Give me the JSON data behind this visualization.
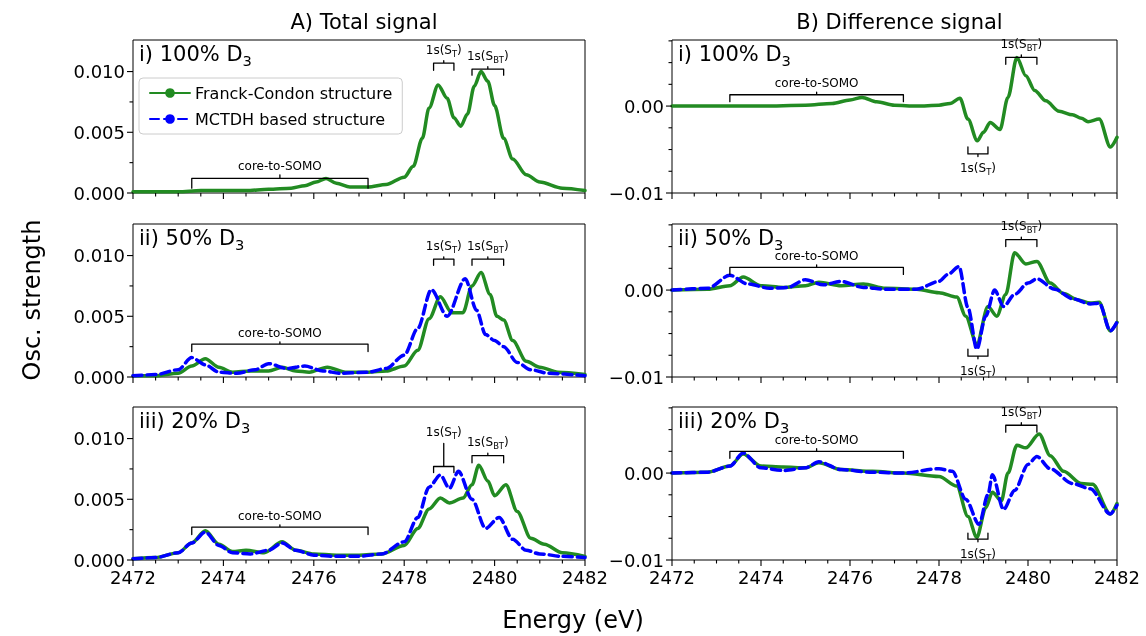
{
  "chart_data": [
    {
      "type": "line",
      "title": "A) Total signal",
      "annotations": [
        "i) 100% D$_{3}$",
        "core-to-SOMO",
        "1s(S$_{T}$)",
        "1s(S$_{BT}$)"
      ],
      "legend": "top left",
      "tick_labels": "y",
      "xlim": [
        2472,
        2482
      ],
      "xticks": [
        2472,
        {
          "value": 2472.5,
          "label": null
        },
        {
          "value": 2473,
          "label": null
        },
        {
          "value": 2473.5,
          "label": null
        },
        2474,
        {
          "value": 2474.5,
          "label": null
        },
        {
          "value": 2475,
          "label": null
        },
        {
          "value": 2475.5,
          "label": null
        },
        2476,
        {
          "value": 2476.5,
          "label": null
        },
        {
          "value": 2477,
          "label": null
        },
        {
          "value": 2477.5,
          "label": null
        },
        2478,
        {
          "value": 2478.5,
          "label": null
        },
        {
          "value": 2479,
          "label": null
        },
        {
          "value": 2479.5,
          "label": null
        },
        2480,
        {
          "value": 2480.5,
          "label": null
        },
        {
          "value": 2481,
          "label": null
        },
        {
          "value": 2481.5,
          "label": null
        },
        2482
      ],
      "ylim": [
        0,
        0.0126
      ],
      "yticks": [
        {
          "value": 0,
          "label": "0.000"
        },
        {
          "value": 0.0025,
          "label": null
        },
        {
          "value": 0.005,
          "label": "0.005"
        },
        {
          "value": 0.0075,
          "label": null
        },
        {
          "value": 0.01,
          "label": "0.010"
        }
      ],
      "series": [
        {
          "name": "Franck-Condon structure",
          "color": "#228b22",
          "line_style": "solid",
          "x": [
            2472,
            2473,
            2473.5,
            2474,
            2474.5,
            2475,
            2475.5,
            2475.8,
            2476.05,
            2476.27,
            2476.5,
            2476.8,
            2477.2,
            2477.6,
            2478,
            2478.2,
            2478.4,
            2478.55,
            2478.75,
            2478.95,
            2479.1,
            2479.25,
            2479.4,
            2479.55,
            2479.7,
            2479.85,
            2480,
            2480.2,
            2480.4,
            2480.7,
            2481,
            2481.5,
            2482
          ],
          "values": [
            0.0001,
            0.0001,
            0.0002,
            0.0002,
            0.0002,
            0.0003,
            0.0004,
            0.0006,
            0.0009,
            0.0012,
            0.0008,
            0.0005,
            0.0005,
            0.0007,
            0.0013,
            0.0022,
            0.0045,
            0.007,
            0.0089,
            0.0078,
            0.0062,
            0.0055,
            0.0065,
            0.0088,
            0.01,
            0.0092,
            0.0072,
            0.0045,
            0.0028,
            0.0015,
            0.0009,
            0.0004,
            0.0002
          ]
        },
        {
          "name": "MCTDH based structure",
          "color": "#0000ff",
          "line_style": "dashed"
        },
        {
          "type": "line",
          "color": "#000000",
          "line_style": "solid",
          "x": [
            2473.3,
            2473.3,
            2475.25,
            2475.25,
            2475.25,
            2477.2,
            2477.2
          ],
          "values": [
            0.0004,
            0.0012,
            0.0012,
            0.0015,
            0.0012,
            0.0012,
            0.0004
          ]
        },
        {
          "type": "line",
          "color": "#000000",
          "line_style": "solid",
          "x": [
            2478.65,
            2478.65,
            2478.875,
            2478.875,
            2478.875,
            2479.1,
            2479.1
          ],
          "values": [
            0.0101,
            0.0107,
            0.0107,
            0.0109,
            0.0107,
            0.0107,
            0.0101
          ]
        },
        {
          "type": "line",
          "color": "#000000",
          "line_style": "solid",
          "x": [
            2479.5,
            2479.5,
            2479.85,
            2479.85,
            2479.85,
            2480.2,
            2480.2
          ],
          "values": [
            0.0097,
            0.0102,
            0.0102,
            0.0104,
            0.0102,
            0.0102,
            0.0097
          ]
        }
      ]
    },
    {
      "type": "line",
      "title": "B) Difference signal",
      "annotations": [
        "i) 100% D$_{3}$",
        "core-to-SOMO",
        "1s(S$_{T}$)",
        "1s(S$_{BT}$)"
      ],
      "tick_labels": "y",
      "xlim": [
        2472,
        2482
      ],
      "xticks": [
        2472,
        {
          "value": 2472.5,
          "label": null
        },
        {
          "value": 2473,
          "label": null
        },
        {
          "value": 2473.5,
          "label": null
        },
        2474,
        {
          "value": 2474.5,
          "label": null
        },
        {
          "value": 2475,
          "label": null
        },
        {
          "value": 2475.5,
          "label": null
        },
        2476,
        {
          "value": 2476.5,
          "label": null
        },
        {
          "value": 2477,
          "label": null
        },
        {
          "value": 2477.5,
          "label": null
        },
        2478,
        {
          "value": 2478.5,
          "label": null
        },
        {
          "value": 2479,
          "label": null
        },
        {
          "value": 2479.5,
          "label": null
        },
        2480,
        {
          "value": 2480.5,
          "label": null
        },
        {
          "value": 2481,
          "label": null
        },
        {
          "value": 2481.5,
          "label": null
        },
        2482
      ],
      "ylim": [
        -0.01,
        0.0076
      ],
      "yticks": [
        {
          "value": -0.01,
          "label": "−0.01"
        },
        {
          "value": -0.0075,
          "label": null
        },
        {
          "value": -0.005,
          "label": null
        },
        {
          "value": -0.0025,
          "label": null
        },
        {
          "value": 0,
          "label": "0.00"
        },
        {
          "value": 0.0025,
          "label": null
        },
        {
          "value": 0.005,
          "label": null
        },
        {
          "value": 0.0075,
          "label": null
        }
      ],
      "series": [
        {
          "color": "#228b22",
          "line_style": "solid",
          "x": [
            2472,
            2473,
            2474,
            2475,
            2475.6,
            2476,
            2476.27,
            2476.6,
            2477,
            2477.5,
            2478,
            2478.25,
            2478.47,
            2478.65,
            2478.86,
            2479,
            2479.15,
            2479.37,
            2479.55,
            2479.75,
            2479.95,
            2480.15,
            2480.4,
            2480.7,
            2481,
            2481.2,
            2481.35,
            2481.6,
            2481.85,
            2482
          ],
          "values": [
            0,
            0,
            0,
            0.0001,
            0.0003,
            0.0007,
            0.001,
            0.0005,
            0.0001,
            0,
            0.0001,
            0.0003,
            0.0009,
            -0.0015,
            -0.004,
            -0.003,
            -0.0019,
            -0.0027,
            0.001,
            0.0056,
            0.0035,
            0.0018,
            0.0006,
            -0.0006,
            -0.001,
            -0.0014,
            -0.0018,
            -0.0015,
            -0.0047,
            -0.0036
          ]
        },
        {
          "type": "line",
          "color": "#000000",
          "line_style": "solid",
          "x": [
            2473.3,
            2473.3,
            2475.25,
            2475.25,
            2475.25,
            2477.2,
            2477.2
          ],
          "values": [
            0.0005,
            0.0013,
            0.0013,
            0.0016,
            0.0013,
            0.0013,
            0.0005
          ]
        },
        {
          "type": "line",
          "color": "#000000",
          "line_style": "solid",
          "x": [
            2478.65,
            2478.65,
            2478.875,
            2478.875,
            2478.875,
            2479.1,
            2479.1
          ],
          "values": [
            -0.0047,
            -0.0055,
            -0.0055,
            -0.0058,
            -0.0055,
            -0.0055,
            -0.0047
          ]
        },
        {
          "type": "line",
          "color": "#000000",
          "line_style": "solid",
          "x": [
            2479.5,
            2479.5,
            2479.85,
            2479.85,
            2479.85,
            2480.2,
            2480.2
          ],
          "values": [
            0.0048,
            0.0056,
            0.0056,
            0.0059,
            0.0056,
            0.0056,
            0.0048
          ]
        }
      ]
    },
    {
      "type": "line",
      "annotations": [
        "ii) 50% D$_{3}$",
        "core-to-SOMO",
        "1s(S$_{T}$)",
        "1s(S$_{BT}$)"
      ],
      "ylabel": "Osc. strength",
      "tick_labels": "y",
      "xlim": [
        2472,
        2482
      ],
      "xticks": [
        2472,
        {
          "value": 2472.5,
          "label": null
        },
        {
          "value": 2473,
          "label": null
        },
        {
          "value": 2473.5,
          "label": null
        },
        2474,
        {
          "value": 2474.5,
          "label": null
        },
        {
          "value": 2475,
          "label": null
        },
        {
          "value": 2475.5,
          "label": null
        },
        2476,
        {
          "value": 2476.5,
          "label": null
        },
        {
          "value": 2477,
          "label": null
        },
        {
          "value": 2477.5,
          "label": null
        },
        2478,
        {
          "value": 2478.5,
          "label": null
        },
        {
          "value": 2479,
          "label": null
        },
        {
          "value": 2479.5,
          "label": null
        },
        2480,
        {
          "value": 2480.5,
          "label": null
        },
        {
          "value": 2481,
          "label": null
        },
        {
          "value": 2481.5,
          "label": null
        },
        2482
      ],
      "ylim": [
        0,
        0.0126
      ],
      "yticks": [
        {
          "value": 0,
          "label": "0.000"
        },
        {
          "value": 0.0025,
          "label": null
        },
        {
          "value": 0.005,
          "label": "0.005"
        },
        {
          "value": 0.0075,
          "label": null
        },
        {
          "value": 0.01,
          "label": "0.010"
        }
      ],
      "series": [
        {
          "color": "#228b22",
          "line_style": "solid",
          "x": [
            2472,
            2472.5,
            2473,
            2473.3,
            2473.6,
            2473.9,
            2474.2,
            2474.6,
            2475,
            2475.3,
            2475.6,
            2475.9,
            2476.3,
            2476.7,
            2477.2,
            2477.6,
            2478,
            2478.3,
            2478.55,
            2478.8,
            2479.05,
            2479.3,
            2479.5,
            2479.7,
            2479.9,
            2480.05,
            2480.2,
            2480.4,
            2480.7,
            2481,
            2481.4,
            2482
          ],
          "values": [
            0.0001,
            0.0001,
            0.0003,
            0.0009,
            0.0015,
            0.0008,
            0.0004,
            0.0005,
            0.0005,
            0.0008,
            0.0005,
            0.0004,
            0.0008,
            0.0004,
            0.0004,
            0.0005,
            0.0009,
            0.0022,
            0.0048,
            0.0066,
            0.0053,
            0.0053,
            0.0075,
            0.0086,
            0.0068,
            0.005,
            0.0047,
            0.003,
            0.0013,
            0.0008,
            0.0004,
            0.0002
          ]
        },
        {
          "color": "#0000ff",
          "line_style": "dashed",
          "x": [
            2472,
            2472.5,
            2473,
            2473.3,
            2473.6,
            2473.9,
            2474.3,
            2474.7,
            2475,
            2475.4,
            2475.8,
            2476.2,
            2476.6,
            2477.2,
            2477.6,
            2478,
            2478.3,
            2478.6,
            2478.95,
            2479.35,
            2479.6,
            2479.8,
            2480,
            2480.2,
            2480.5,
            2480.8,
            2481.2,
            2482
          ],
          "values": [
            0.0001,
            0.0002,
            0.0006,
            0.0016,
            0.001,
            0.0004,
            0.0003,
            0.0006,
            0.0011,
            0.0007,
            0.0009,
            0.0005,
            0.0003,
            0.0004,
            0.0007,
            0.0018,
            0.004,
            0.0072,
            0.005,
            0.0081,
            0.0055,
            0.0035,
            0.003,
            0.0025,
            0.0012,
            0.0006,
            0.0003,
            0.0001
          ]
        },
        {
          "type": "line",
          "color": "#000000",
          "line_style": "solid",
          "x": [
            2473.3,
            2473.3,
            2475.25,
            2475.25,
            2475.25,
            2477.2,
            2477.2
          ],
          "values": [
            0.0021,
            0.0027,
            0.0027,
            0.0029,
            0.0027,
            0.0027,
            0.0021
          ]
        },
        {
          "type": "line",
          "color": "#000000",
          "line_style": "solid",
          "x": [
            2478.65,
            2478.65,
            2478.875,
            2478.875,
            2478.875,
            2479.1,
            2479.1
          ],
          "values": [
            0.0092,
            0.0097,
            0.0097,
            0.0099,
            0.0097,
            0.0097,
            0.0092
          ]
        },
        {
          "type": "line",
          "color": "#000000",
          "line_style": "solid",
          "x": [
            2479.5,
            2479.5,
            2479.85,
            2479.85,
            2479.85,
            2480.2,
            2480.2
          ],
          "values": [
            0.0092,
            0.0097,
            0.0097,
            0.0099,
            0.0097,
            0.0097,
            0.0092
          ]
        }
      ]
    },
    {
      "type": "line",
      "annotations": [
        "ii) 50% D$_{3}$",
        "core-to-SOMO",
        "1s(S$_{T}$)",
        "1s(S$_{BT}$)"
      ],
      "tick_labels": "y",
      "xlim": [
        2472,
        2482
      ],
      "xticks": [
        2472,
        {
          "value": 2472.5,
          "label": null
        },
        {
          "value": 2473,
          "label": null
        },
        {
          "value": 2473.5,
          "label": null
        },
        2474,
        {
          "value": 2474.5,
          "label": null
        },
        {
          "value": 2475,
          "label": null
        },
        {
          "value": 2475.5,
          "label": null
        },
        2476,
        {
          "value": 2476.5,
          "label": null
        },
        {
          "value": 2477,
          "label": null
        },
        {
          "value": 2477.5,
          "label": null
        },
        2478,
        {
          "value": 2478.5,
          "label": null
        },
        {
          "value": 2479,
          "label": null
        },
        {
          "value": 2479.5,
          "label": null
        },
        2480,
        {
          "value": 2480.5,
          "label": null
        },
        {
          "value": 2481,
          "label": null
        },
        {
          "value": 2481.5,
          "label": null
        },
        2482
      ],
      "ylim": [
        -0.01,
        0.0076
      ],
      "yticks": [
        {
          "value": -0.01,
          "label": "−0.01"
        },
        {
          "value": -0.0075,
          "label": null
        },
        {
          "value": -0.005,
          "label": null
        },
        {
          "value": -0.0025,
          "label": null
        },
        {
          "value": 0,
          "label": "0.00"
        },
        {
          "value": 0.0025,
          "label": null
        },
        {
          "value": 0.005,
          "label": null
        },
        {
          "value": 0.0075,
          "label": null
        }
      ],
      "series": [
        {
          "color": "#228b22",
          "line_style": "solid",
          "x": [
            2472,
            2472.8,
            2473.3,
            2473.6,
            2474,
            2474.5,
            2475,
            2475.3,
            2475.8,
            2476.3,
            2476.8,
            2477.5,
            2478,
            2478.4,
            2478.6,
            2478.85,
            2479.1,
            2479.3,
            2479.5,
            2479.7,
            2479.95,
            2480.2,
            2480.5,
            2480.8,
            2481.1,
            2481.4,
            2481.6,
            2481.85,
            2482
          ],
          "values": [
            0,
            0.0001,
            0.0005,
            0.0015,
            0.0005,
            0.0003,
            0.0005,
            0.0009,
            0.0005,
            0.0007,
            0.0002,
            0.0001,
            -0.0003,
            -0.0008,
            -0.003,
            -0.0062,
            -0.0019,
            -0.003,
            -0.0005,
            0.0043,
            0.003,
            0.0033,
            0.0008,
            -0.0004,
            -0.0011,
            -0.0015,
            -0.0014,
            -0.0047,
            -0.0037
          ]
        },
        {
          "color": "#0000ff",
          "line_style": "dashed",
          "x": [
            2472,
            2472.8,
            2473.3,
            2473.7,
            2474.2,
            2474.6,
            2475,
            2475.4,
            2475.8,
            2476.3,
            2476.8,
            2477.5,
            2478,
            2478.2,
            2478.45,
            2478.65,
            2478.85,
            2479.05,
            2479.25,
            2479.45,
            2479.7,
            2480,
            2480.2,
            2480.6,
            2481,
            2481.4,
            2481.6,
            2481.85,
            2482
          ],
          "values": [
            0,
            0.0002,
            0.0017,
            0.0007,
            0.0002,
            0.0003,
            0.0012,
            0.0006,
            0.001,
            0.0003,
            0.0001,
            0.0001,
            0.001,
            0.0018,
            0.0027,
            -0.002,
            -0.0068,
            -0.003,
            0,
            -0.0019,
            -0.0005,
            0.0008,
            0.0013,
            0.0001,
            -0.001,
            -0.0016,
            -0.0015,
            -0.0047,
            -0.0037
          ]
        },
        {
          "type": "line",
          "color": "#000000",
          "line_style": "solid",
          "x": [
            2473.3,
            2473.3,
            2475.25,
            2475.25,
            2475.25,
            2477.2,
            2477.2
          ],
          "values": [
            0.0018,
            0.0026,
            0.0026,
            0.0029,
            0.0026,
            0.0026,
            0.0018
          ]
        },
        {
          "type": "line",
          "color": "#000000",
          "line_style": "solid",
          "x": [
            2478.65,
            2478.65,
            2478.875,
            2478.875,
            2478.875,
            2479.1,
            2479.1
          ],
          "values": [
            -0.0068,
            -0.0076,
            -0.0076,
            -0.0079,
            -0.0076,
            -0.0076,
            -0.0068
          ]
        },
        {
          "type": "line",
          "color": "#000000",
          "line_style": "solid",
          "x": [
            2479.5,
            2479.5,
            2479.85,
            2479.85,
            2479.85,
            2480.2,
            2480.2
          ],
          "values": [
            0.005,
            0.0058,
            0.0058,
            0.0061,
            0.0058,
            0.0058,
            0.005
          ]
        }
      ]
    },
    {
      "type": "line",
      "annotations": [
        "iii) 20% D$_{3}$",
        "core-to-SOMO",
        "1s(S$_{T}$)",
        "1s(S$_{BT}$)"
      ],
      "xlabel": "Energy (eV)",
      "xlim": [
        2472,
        2482
      ],
      "xticks": [
        2472,
        {
          "value": 2472.5,
          "label": null
        },
        {
          "value": 2473,
          "label": null
        },
        {
          "value": 2473.5,
          "label": null
        },
        2474,
        {
          "value": 2474.5,
          "label": null
        },
        {
          "value": 2475,
          "label": null
        },
        {
          "value": 2475.5,
          "label": null
        },
        2476,
        {
          "value": 2476.5,
          "label": null
        },
        {
          "value": 2477,
          "label": null
        },
        {
          "value": 2477.5,
          "label": null
        },
        2478,
        {
          "value": 2478.5,
          "label": null
        },
        {
          "value": 2479,
          "label": null
        },
        {
          "value": 2479.5,
          "label": null
        },
        2480,
        {
          "value": 2480.5,
          "label": null
        },
        {
          "value": 2481,
          "label": null
        },
        {
          "value": 2481.5,
          "label": null
        },
        2482
      ],
      "ylim": [
        0,
        0.0126
      ],
      "yticks": [
        {
          "value": 0,
          "label": "0.000"
        },
        {
          "value": 0.0025,
          "label": null
        },
        {
          "value": 0.005,
          "label": "0.005"
        },
        {
          "value": 0.0075,
          "label": null
        },
        {
          "value": 0.01,
          "label": "0.010"
        }
      ],
      "series": [
        {
          "color": "#228b22",
          "line_style": "solid",
          "x": [
            2472,
            2472.5,
            2473,
            2473.3,
            2473.6,
            2473.9,
            2474.2,
            2474.5,
            2474.9,
            2475.3,
            2475.6,
            2476,
            2476.5,
            2477,
            2477.5,
            2478,
            2478.3,
            2478.55,
            2478.8,
            2479,
            2479.3,
            2479.5,
            2479.65,
            2479.85,
            2480,
            2480.25,
            2480.5,
            2480.8,
            2481.1,
            2481.5,
            2482
          ],
          "values": [
            0.0001,
            0.0002,
            0.0006,
            0.0014,
            0.0024,
            0.0013,
            0.0007,
            0.0008,
            0.0006,
            0.0015,
            0.0008,
            0.0005,
            0.0004,
            0.0004,
            0.0005,
            0.0012,
            0.0026,
            0.0042,
            0.0051,
            0.0047,
            0.0051,
            0.0062,
            0.0078,
            0.0065,
            0.0053,
            0.0062,
            0.004,
            0.0018,
            0.0013,
            0.0006,
            0.0003
          ]
        },
        {
          "color": "#0000ff",
          "line_style": "dashed",
          "x": [
            2472,
            2472.5,
            2473,
            2473.3,
            2473.6,
            2473.9,
            2474.2,
            2474.6,
            2475,
            2475.3,
            2475.6,
            2476,
            2476.5,
            2477,
            2477.5,
            2478,
            2478.3,
            2478.55,
            2478.8,
            2479,
            2479.2,
            2479.5,
            2479.8,
            2480.1,
            2480.4,
            2480.7,
            2481,
            2481.5,
            2482
          ],
          "values": [
            0.0001,
            0.0002,
            0.0006,
            0.0014,
            0.0023,
            0.0012,
            0.0006,
            0.0005,
            0.0008,
            0.0014,
            0.0008,
            0.0004,
            0.0003,
            0.0003,
            0.0005,
            0.0015,
            0.0035,
            0.006,
            0.007,
            0.0059,
            0.0073,
            0.005,
            0.0026,
            0.0035,
            0.0017,
            0.0008,
            0.0005,
            0.0003,
            0.0002
          ]
        },
        {
          "type": "line",
          "color": "#000000",
          "line_style": "solid",
          "x": [
            2473.3,
            2473.3,
            2475.25,
            2475.25,
            2475.25,
            2477.2,
            2477.2
          ],
          "values": [
            0.0021,
            0.0027,
            0.0027,
            0.0029,
            0.0027,
            0.0027,
            0.0021
          ]
        },
        {
          "type": "line",
          "color": "#000000",
          "line_style": "solid",
          "x": [
            2478.65,
            2478.65,
            2478.875,
            2478.875,
            2478.875,
            2479.1,
            2479.1
          ],
          "values": [
            0.0072,
            0.0077,
            0.0077,
            0.0096,
            0.0077,
            0.0077,
            0.0072
          ]
        },
        {
          "type": "line",
          "color": "#000000",
          "line_style": "solid",
          "x": [
            2479.5,
            2479.5,
            2479.85,
            2479.85,
            2479.85,
            2480.2,
            2480.2
          ],
          "values": [
            0.008,
            0.0086,
            0.0086,
            0.0088,
            0.0086,
            0.0086,
            0.008
          ]
        }
      ]
    },
    {
      "type": "line",
      "annotations": [
        "iii) 20% D$_{3}$",
        "core-to-SOMO",
        "1s(S$_{T}$)",
        "1s(S$_{BT}$)"
      ],
      "xlim": [
        2472,
        2482
      ],
      "xticks": [
        2472,
        {
          "value": 2472.5,
          "label": null
        },
        {
          "value": 2473,
          "label": null
        },
        {
          "value": 2473.5,
          "label": null
        },
        2474,
        {
          "value": 2474.5,
          "label": null
        },
        {
          "value": 2475,
          "label": null
        },
        {
          "value": 2475.5,
          "label": null
        },
        2476,
        {
          "value": 2476.5,
          "label": null
        },
        {
          "value": 2477,
          "label": null
        },
        {
          "value": 2477.5,
          "label": null
        },
        2478,
        {
          "value": 2478.5,
          "label": null
        },
        {
          "value": 2479,
          "label": null
        },
        {
          "value": 2479.5,
          "label": null
        },
        2480,
        {
          "value": 2480.5,
          "label": null
        },
        {
          "value": 2481,
          "label": null
        },
        {
          "value": 2481.5,
          "label": null
        },
        2482
      ],
      "ylim": [
        -0.01,
        0.0076
      ],
      "yticks": [
        {
          "value": -0.01,
          "label": "−0.01"
        },
        {
          "value": -0.0075,
          "label": null
        },
        {
          "value": -0.005,
          "label": null
        },
        {
          "value": -0.0025,
          "label": null
        },
        {
          "value": 0,
          "label": "0.00"
        },
        {
          "value": 0.0025,
          "label": null
        },
        {
          "value": 0.005,
          "label": null
        },
        {
          "value": 0.0075,
          "label": null
        }
      ],
      "series": [
        {
          "color": "#228b22",
          "line_style": "solid",
          "x": [
            2472,
            2472.8,
            2473.3,
            2473.6,
            2474,
            2474.5,
            2475,
            2475.3,
            2475.8,
            2476.5,
            2477.2,
            2478,
            2478.4,
            2478.65,
            2478.85,
            2479.05,
            2479.2,
            2479.4,
            2479.55,
            2479.75,
            2479.95,
            2480.25,
            2480.5,
            2480.8,
            2481.2,
            2481.45,
            2481.85,
            2482
          ],
          "values": [
            0,
            0.0001,
            0.0008,
            0.0022,
            0.0008,
            0.0007,
            0.0006,
            0.0012,
            0.0004,
            0.0002,
            0,
            -0.0004,
            -0.0015,
            -0.005,
            -0.0074,
            -0.004,
            -0.0022,
            -0.0032,
            0,
            0.0032,
            0.0029,
            0.0045,
            0.002,
            0.0002,
            -0.0012,
            -0.0013,
            -0.0047,
            -0.0035
          ]
        },
        {
          "color": "#0000ff",
          "line_style": "dashed",
          "x": [
            2472,
            2472.8,
            2473.3,
            2473.6,
            2474,
            2474.5,
            2475,
            2475.3,
            2475.8,
            2476.5,
            2477.2,
            2478,
            2478.3,
            2478.6,
            2478.9,
            2479.1,
            2479.2,
            2479.45,
            2479.7,
            2480,
            2480.2,
            2480.5,
            2481,
            2481.4,
            2481.85,
            2482
          ],
          "values": [
            0,
            0.0001,
            0.0008,
            0.0023,
            0.0006,
            0.0003,
            0.0006,
            0.0013,
            0.0004,
            0.0001,
            0,
            0.0005,
            0.0002,
            -0.003,
            -0.0059,
            -0.0025,
            -0.0002,
            -0.0042,
            -0.002,
            0.001,
            0.0019,
            0.0005,
            -0.0012,
            -0.0018,
            -0.0047,
            -0.0037
          ]
        },
        {
          "type": "line",
          "color": "#000000",
          "line_style": "solid",
          "x": [
            2473.3,
            2473.3,
            2475.25,
            2475.25,
            2475.25,
            2477.2,
            2477.2
          ],
          "values": [
            0.0017,
            0.0025,
            0.0025,
            0.0028,
            0.0025,
            0.0025,
            0.0017
          ]
        },
        {
          "type": "line",
          "color": "#000000",
          "line_style": "solid",
          "x": [
            2478.65,
            2478.65,
            2478.875,
            2478.875,
            2478.875,
            2479.1,
            2479.1
          ],
          "values": [
            -0.0069,
            -0.0076,
            -0.0076,
            -0.0079,
            -0.0076,
            -0.0076,
            -0.0069
          ]
        },
        {
          "type": "line",
          "color": "#000000",
          "line_style": "solid",
          "x": [
            2479.5,
            2479.5,
            2479.85,
            2479.85,
            2479.85,
            2480.2,
            2480.2
          ],
          "values": [
            0.0047,
            0.0055,
            0.0055,
            0.0058,
            0.0055,
            0.0055,
            0.0047
          ]
        }
      ]
    }
  ]
}
